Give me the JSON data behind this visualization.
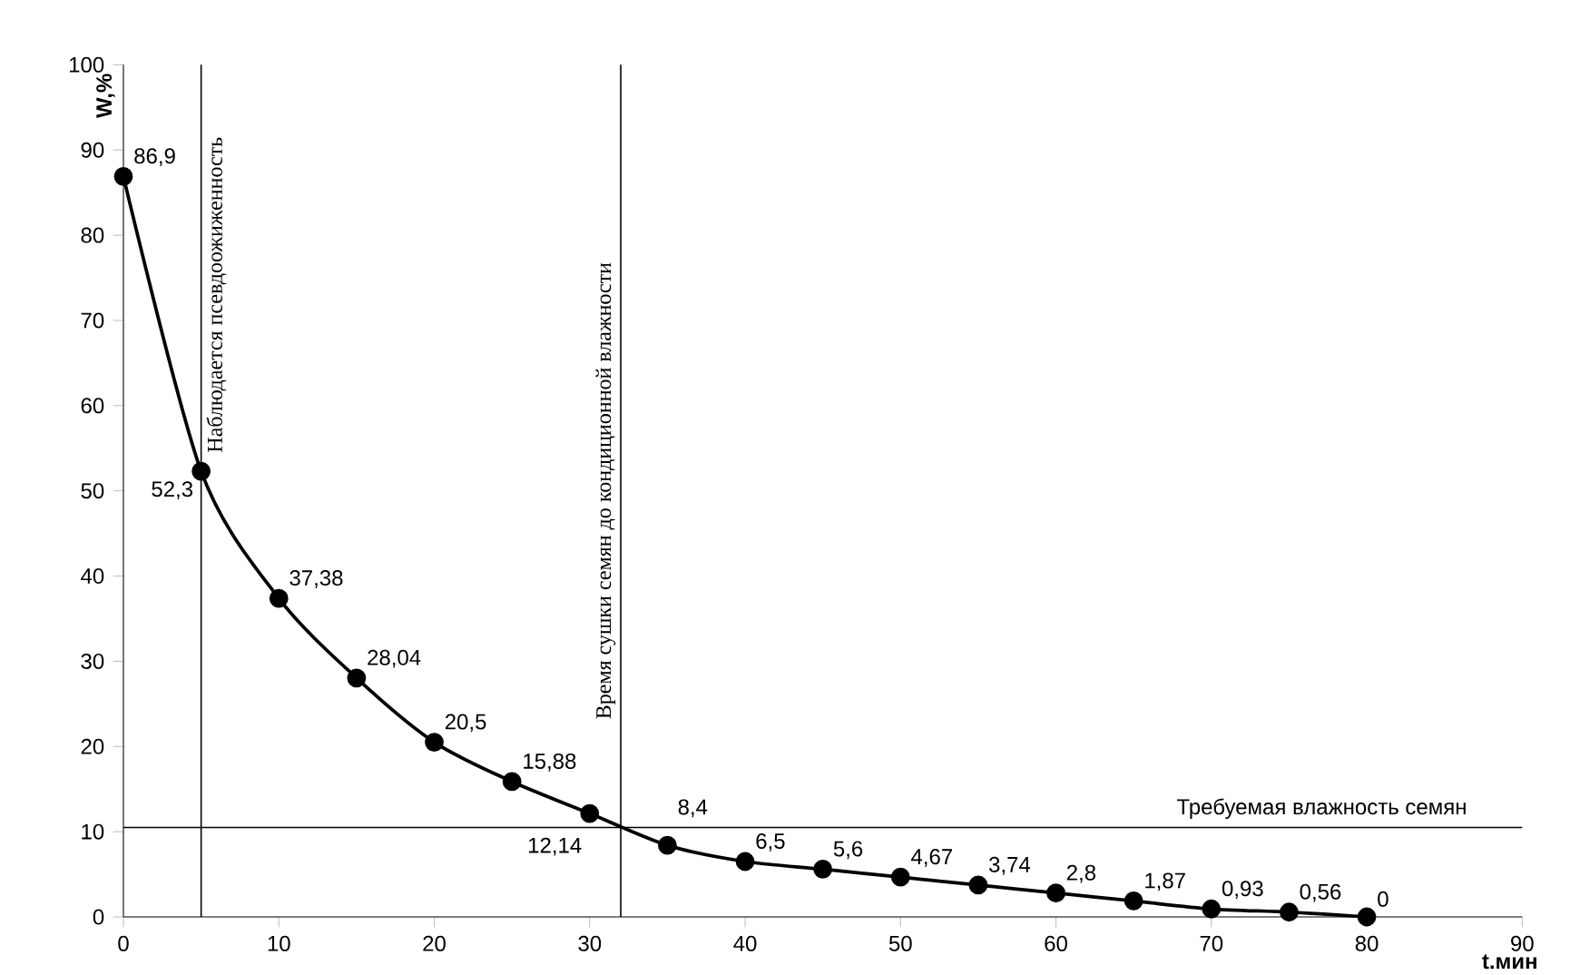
{
  "chart_data": {
    "type": "line",
    "xlabel": "t.мин",
    "ylabel": "W,%",
    "x": [
      0,
      5,
      10,
      15,
      20,
      25,
      30,
      35,
      40,
      45,
      50,
      55,
      60,
      65,
      70,
      75,
      80
    ],
    "series": [
      {
        "color": "#000000",
        "values": [
          86.9,
          52.3,
          37.38,
          28.04,
          20.5,
          15.88,
          12.14,
          8.4,
          6.5,
          5.6,
          4.67,
          3.74,
          2.8,
          1.87,
          0.93,
          0.56,
          0
        ],
        "value_labels": [
          "86,9",
          "52,3",
          "37,38",
          "28,04",
          "20,5",
          "15,88",
          "12,14",
          "8,4",
          "6,5",
          "5,6",
          "4,67",
          "3,74",
          "2,8",
          "1,87",
          "0,93",
          "0,56",
          "0"
        ]
      }
    ],
    "xlim": [
      0,
      90
    ],
    "ylim": [
      0,
      100
    ],
    "xticks": [
      0,
      10,
      20,
      30,
      40,
      50,
      60,
      70,
      80,
      90
    ],
    "yticks": [
      0,
      10,
      20,
      30,
      40,
      50,
      60,
      70,
      80,
      90,
      100
    ],
    "ref_lines": [
      {
        "axis": "x",
        "value": 5,
        "label": "Наблюдается псевдоожиженность"
      },
      {
        "axis": "x",
        "value": 32,
        "label": "Время сушки семян до кондиционной влажности"
      },
      {
        "axis": "y",
        "value": 10.5,
        "label": "Требуемая влажность семян"
      }
    ],
    "grid": false,
    "marker": "circle",
    "line_style": "solid"
  }
}
